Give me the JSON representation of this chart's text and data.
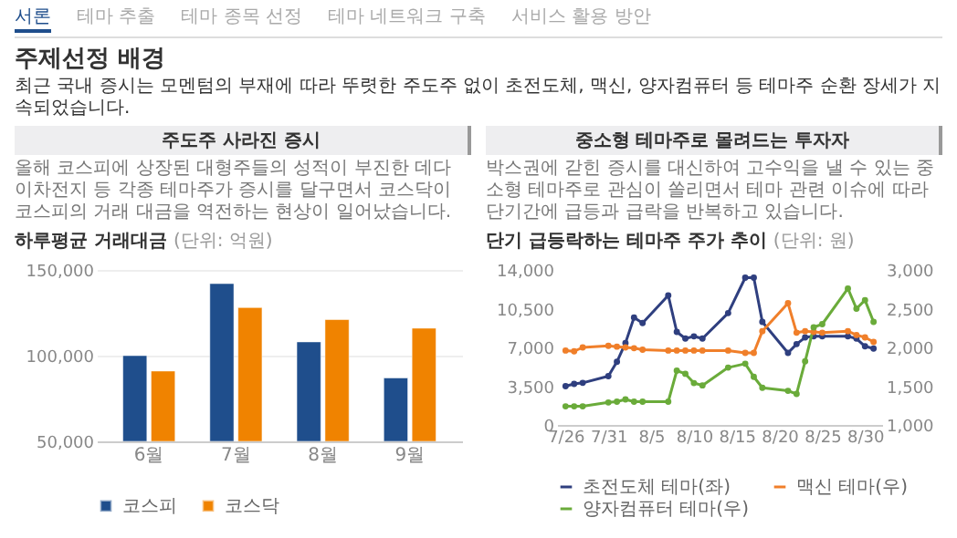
{
  "chart_data": [
    {
      "type": "bar",
      "title": "하루평균 거래대금",
      "subtitle": "(단위: 억원)",
      "categories": [
        "6월",
        "7월",
        "8월",
        "9월"
      ],
      "series": [
        {
          "name": "코스피",
          "color": "#1f4e8c",
          "values": [
            100000,
            142000,
            108000,
            87000
          ]
        },
        {
          "name": "코스닥",
          "color": "#f08300",
          "values": [
            91000,
            128000,
            121000,
            116000
          ]
        }
      ],
      "ylim": [
        50000,
        150000
      ],
      "yticks": [
        {
          "value": 50000,
          "label": "50,000"
        },
        {
          "value": 100000,
          "label": "100,000"
        },
        {
          "value": 150000,
          "label": "150,000"
        }
      ],
      "grid": "y",
      "legend": "bottom",
      "annotations": [
        "서론",
        "테마 추출",
        "테마 종목 선정",
        "테마 네트워크 구축",
        "서비스 활용 방안",
        "주제선정 배경",
        "최근 국내 증시는 모멘텀의 부재에 따라 뚜렷한 주도주 없이 초전도체, 맥신, 양자컴퓨터 등 테마주 순환 장세가 지속되었습니다.",
        "주도주 사라진 증시",
        "올해 코스피에 상장된 대형주들의 성적이 부진한 데다 이차전지 등 각종 테마주가 증시를 달구면서 코스닥이 코스피의 거래 대금을 역전하는 현상이 일어났습니다."
      ]
    },
    {
      "type": "line",
      "title": "단기 급등락하는 테마주 주가 추이",
      "subtitle": "(단위: 원)",
      "marker": "circle",
      "legend": "bottom",
      "xlim": [
        "--07-25",
        "--09-01"
      ],
      "xticks": [
        {
          "value": "--07-26",
          "label": "7/26"
        },
        {
          "value": "--07-31",
          "label": "7/31"
        },
        {
          "value": "--08-05",
          "label": "8/5"
        },
        {
          "value": "--08-10",
          "label": "8/10"
        },
        {
          "value": "--08-15",
          "label": "8/15"
        },
        {
          "value": "--08-20",
          "label": "8/20"
        },
        {
          "value": "--08-25",
          "label": "8/25"
        },
        {
          "value": "--08-30",
          "label": "8/30"
        }
      ],
      "x": [
        "--07-26",
        "--07-27",
        "--07-28",
        "--07-31",
        "--08-01",
        "--08-02",
        "--08-03",
        "--08-04",
        "--08-07",
        "--08-08",
        "--08-09",
        "--08-10",
        "--08-11",
        "--08-14",
        "--08-16",
        "--08-17",
        "--08-18",
        "--08-21",
        "--08-22",
        "--08-23",
        "--08-24",
        "--08-25",
        "--08-28",
        "--08-29",
        "--08-30",
        "--08-31"
      ],
      "series": [
        {
          "name": "초전도체 테마(좌)",
          "color": "#2f3f7f",
          "values": [
            3500,
            3700,
            3800,
            4400,
            5700,
            7400,
            9700,
            9200,
            11700,
            8400,
            7800,
            8000,
            7800,
            10100,
            13300,
            13300,
            9300,
            6500,
            7300,
            7900,
            8000,
            8000,
            8000,
            7800,
            7100,
            6900
          ]
        },
        {
          "name": "맥신 테마(우)",
          "color": "#f07f2a",
          "axis": "y2",
          "values": [
            1960,
            1950,
            2000,
            2020,
            2010,
            2000,
            1990,
            1970,
            1960,
            1960,
            1960,
            1960,
            1960,
            1960,
            1930,
            1930,
            2210,
            2570,
            2190,
            2210,
            2200,
            2190,
            2210,
            2160,
            2130,
            2070
          ]
        },
        {
          "name": "양자컴퓨터 테마(우)",
          "color": "#6aab3a",
          "axis": "y2",
          "values": [
            1240,
            1240,
            1240,
            1290,
            1300,
            1330,
            1300,
            1300,
            1300,
            1700,
            1660,
            1540,
            1510,
            1740,
            1790,
            1620,
            1480,
            1440,
            1400,
            1820,
            2260,
            2300,
            2760,
            2500,
            2610,
            2330
          ]
        }
      ],
      "ylim": [
        0,
        14000
      ],
      "yticks": [
        0,
        {
          "value": 3500,
          "label": "3,500"
        },
        {
          "value": 7000,
          "label": "7,000"
        },
        {
          "value": 10500,
          "label": "10,500"
        },
        {
          "value": 14000,
          "label": "14,000"
        }
      ],
      "y2lim": [
        1000,
        3000
      ],
      "y2ticks": [
        {
          "value": 1000,
          "label": "1,000"
        },
        {
          "value": 1500,
          "label": "1,500"
        },
        {
          "value": 2000,
          "label": "2,000"
        },
        {
          "value": 2500,
          "label": "2,500"
        },
        {
          "value": 3000,
          "label": "3,000"
        }
      ],
      "annotations": [
        "중소형 테마주로 몰려드는 투자자",
        "박스권에 갇힌 증시를 대신하여 고수익을 낼 수 있는 중소형 테마주로 관심이 쏠리면서 테마 관련 이슈에 따라 단기간에 급등과 급락을 반복하고 있습니다."
      ]
    }
  ]
}
